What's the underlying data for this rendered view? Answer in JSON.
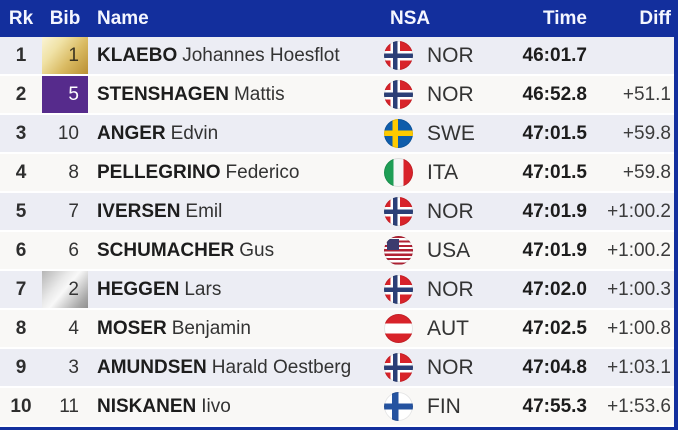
{
  "colors": {
    "header_bg": "#132f9d",
    "row_odd_bg": "#ecedf4",
    "row_even_bg": "#f9f8f6",
    "leader_bib_gold": "#d9ba62",
    "u23_bib_purple": "#562b8c",
    "bib_silver": "#c0c0c0"
  },
  "table": {
    "columns": {
      "rank": "Rk",
      "bib": "Bib",
      "name": "Name",
      "nsa": "NSA",
      "time": "Time",
      "diff": "Diff"
    },
    "rows": [
      {
        "rank": "1",
        "bib": "1",
        "bib_class": "c bib bib-gold",
        "surname": "KLAEBO",
        "given": "Johannes Hoesflot",
        "nsa": "NOR",
        "flag_class": "flag flag-nor",
        "time": "46:01.7",
        "diff": ""
      },
      {
        "rank": "2",
        "bib": "5",
        "bib_class": "c bib bib-purple",
        "surname": "STENSHAGEN",
        "given": "Mattis",
        "nsa": "NOR",
        "flag_class": "flag flag-nor",
        "time": "46:52.8",
        "diff": "+51.1"
      },
      {
        "rank": "3",
        "bib": "10",
        "bib_class": "c bib",
        "surname": "ANGER",
        "given": "Edvin",
        "nsa": "SWE",
        "flag_class": "flag flag-swe",
        "time": "47:01.5",
        "diff": "+59.8"
      },
      {
        "rank": "4",
        "bib": "8",
        "bib_class": "c bib",
        "surname": "PELLEGRINO",
        "given": "Federico",
        "nsa": "ITA",
        "flag_class": "flag flag-ita",
        "time": "47:01.5",
        "diff": "+59.8"
      },
      {
        "rank": "5",
        "bib": "7",
        "bib_class": "c bib",
        "surname": "IVERSEN",
        "given": "Emil",
        "nsa": "NOR",
        "flag_class": "flag flag-nor",
        "time": "47:01.9",
        "diff": "+1:00.2"
      },
      {
        "rank": "6",
        "bib": "6",
        "bib_class": "c bib",
        "surname": "SCHUMACHER",
        "given": "Gus",
        "nsa": "USA",
        "flag_class": "flag flag-usa",
        "time": "47:01.9",
        "diff": "+1:00.2"
      },
      {
        "rank": "7",
        "bib": "2",
        "bib_class": "c bib bib-silver",
        "surname": "HEGGEN",
        "given": "Lars",
        "nsa": "NOR",
        "flag_class": "flag flag-nor",
        "time": "47:02.0",
        "diff": "+1:00.3"
      },
      {
        "rank": "8",
        "bib": "4",
        "bib_class": "c bib",
        "surname": "MOSER",
        "given": "Benjamin",
        "nsa": "AUT",
        "flag_class": "flag flag-aut",
        "time": "47:02.5",
        "diff": "+1:00.8"
      },
      {
        "rank": "9",
        "bib": "3",
        "bib_class": "c bib",
        "surname": "AMUNDSEN",
        "given": "Harald Oestberg",
        "nsa": "NOR",
        "flag_class": "flag flag-nor",
        "time": "47:04.8",
        "diff": "+1:03.1"
      },
      {
        "rank": "10",
        "bib": "11",
        "bib_class": "c bib",
        "surname": "NISKANEN",
        "given": "Iivo",
        "nsa": "FIN",
        "flag_class": "flag flag-fin",
        "time": "47:55.3",
        "diff": "+1:53.6"
      }
    ]
  }
}
